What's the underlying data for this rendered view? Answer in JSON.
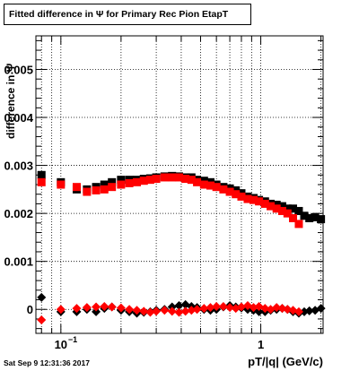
{
  "title": "Fitted difference in  Ψ  for Primary Rec Pion EtapT",
  "timestamp": "Sat Sep  9 12:31:36 2017",
  "chart_data": {
    "type": "scatter",
    "xlabel": "pT/|q| (GeV/c)",
    "ylabel": "difference in  Ψ",
    "xscale": "log",
    "xlim": [
      0.075,
      2.05
    ],
    "ylim": [
      -0.0005,
      0.0057
    ],
    "grid": true,
    "x_tick_labels": [
      {
        "value": 0.1,
        "label": "10",
        "exp": "−1"
      },
      {
        "value": 1,
        "label": "1",
        "exp": ""
      }
    ],
    "y_tick_labels": [
      {
        "value": 0,
        "label": "0"
      },
      {
        "value": 0.001,
        "label": "0.001"
      },
      {
        "value": 0.002,
        "label": "0.002"
      },
      {
        "value": 0.003,
        "label": "0.003"
      },
      {
        "value": 0.004,
        "label": "0.004"
      },
      {
        "value": 0.005,
        "label": "0.005"
      }
    ],
    "series": [
      {
        "color": "#000000",
        "marker": "square",
        "x": [
          0.08,
          0.1,
          0.12,
          0.135,
          0.15,
          0.165,
          0.18,
          0.2,
          0.22,
          0.24,
          0.26,
          0.28,
          0.3,
          0.33,
          0.36,
          0.39,
          0.42,
          0.45,
          0.48,
          0.52,
          0.56,
          0.6,
          0.65,
          0.7,
          0.75,
          0.8,
          0.86,
          0.92,
          0.98,
          1.05,
          1.12,
          1.2,
          1.28,
          1.36,
          1.45,
          1.55,
          1.65,
          1.75,
          1.87,
          2.0
        ],
        "y": [
          0.0028,
          0.00265,
          0.0025,
          0.0025,
          0.00255,
          0.0026,
          0.00265,
          0.0027,
          0.0027,
          0.0027,
          0.00272,
          0.00273,
          0.00275,
          0.00277,
          0.00278,
          0.00277,
          0.00275,
          0.00275,
          0.0027,
          0.00268,
          0.00265,
          0.0026,
          0.00255,
          0.00252,
          0.00248,
          0.00242,
          0.00235,
          0.00232,
          0.00228,
          0.00225,
          0.0022,
          0.00218,
          0.00215,
          0.0021,
          0.0021,
          0.00205,
          0.00195,
          0.0019,
          0.00192,
          0.00188
        ]
      },
      {
        "color": "#ff0000",
        "marker": "square",
        "x": [
          0.08,
          0.1,
          0.12,
          0.135,
          0.15,
          0.165,
          0.18,
          0.2,
          0.22,
          0.24,
          0.26,
          0.28,
          0.3,
          0.33,
          0.36,
          0.39,
          0.42,
          0.45,
          0.48,
          0.52,
          0.56,
          0.6,
          0.65,
          0.7,
          0.75,
          0.8,
          0.86,
          0.92,
          0.98,
          1.05,
          1.12,
          1.2,
          1.28,
          1.36,
          1.45,
          1.55
        ],
        "y": [
          0.00265,
          0.0026,
          0.00255,
          0.00245,
          0.00248,
          0.0025,
          0.00255,
          0.0026,
          0.00263,
          0.00265,
          0.00268,
          0.0027,
          0.00272,
          0.00275,
          0.00275,
          0.00275,
          0.00272,
          0.0027,
          0.00265,
          0.0026,
          0.00258,
          0.00255,
          0.0025,
          0.00245,
          0.0024,
          0.00235,
          0.0023,
          0.00228,
          0.00225,
          0.0022,
          0.00215,
          0.0021,
          0.00205,
          0.002,
          0.0019,
          0.00178
        ]
      },
      {
        "color": "#000000",
        "marker": "diamond",
        "x": [
          0.08,
          0.1,
          0.12,
          0.135,
          0.15,
          0.165,
          0.18,
          0.2,
          0.22,
          0.24,
          0.26,
          0.28,
          0.3,
          0.33,
          0.36,
          0.39,
          0.42,
          0.45,
          0.48,
          0.52,
          0.56,
          0.6,
          0.65,
          0.7,
          0.75,
          0.8,
          0.86,
          0.92,
          0.98,
          1.05,
          1.12,
          1.2,
          1.28,
          1.36,
          1.45,
          1.55,
          1.65,
          1.75,
          1.87,
          2.0
        ],
        "y": [
          0.00025,
          -5e-05,
          -5e-05,
          0.0,
          -5e-05,
          2e-05,
          5e-05,
          -2e-05,
          -5e-05,
          -8e-05,
          -6e-05,
          -5e-05,
          -2e-05,
          0.0,
          5e-05,
          8e-05,
          0.0001,
          6e-05,
          4e-05,
          0.0,
          -2e-05,
          0.0,
          5e-05,
          8e-05,
          5e-05,
          3e-05,
          0.0,
          -2e-05,
          -5e-05,
          -5e-05,
          -2e-05,
          0.0,
          2e-05,
          0.0,
          -5e-05,
          -8e-05,
          -5e-05,
          -3e-05,
          -2e-05,
          2e-05
        ]
      },
      {
        "color": "#ff0000",
        "marker": "diamond",
        "x": [
          0.08,
          0.1,
          0.12,
          0.135,
          0.15,
          0.165,
          0.18,
          0.2,
          0.22,
          0.24,
          0.26,
          0.28,
          0.3,
          0.33,
          0.36,
          0.39,
          0.42,
          0.45,
          0.48,
          0.52,
          0.56,
          0.6,
          0.65,
          0.7,
          0.75,
          0.8,
          0.86,
          0.92,
          0.98,
          1.05,
          1.12,
          1.2,
          1.28,
          1.36,
          1.45,
          1.55
        ],
        "y": [
          -0.00022,
          0.0,
          2e-05,
          4e-05,
          5e-05,
          6e-05,
          5e-05,
          3e-05,
          0.0,
          -2e-05,
          -4e-05,
          -6e-05,
          -4e-05,
          -2e-05,
          -4e-05,
          -6e-05,
          -4e-05,
          -2e-05,
          0.0,
          2e-05,
          4e-05,
          6e-05,
          6e-05,
          4e-05,
          2e-05,
          5e-05,
          8e-05,
          4e-05,
          6e-05,
          2e-05,
          0.0,
          4e-05,
          2e-05,
          0.0,
          -2e-05,
          -5e-05
        ]
      }
    ]
  }
}
